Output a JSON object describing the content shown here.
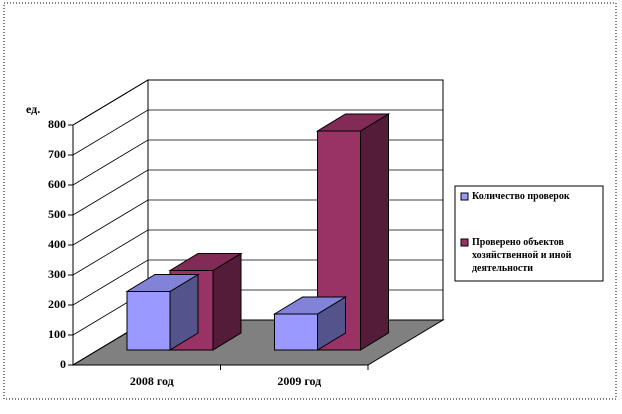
{
  "chart_data": {
    "type": "bar3d",
    "y_label": "ед.",
    "categories": [
      "2008 год",
      "2009 год"
    ],
    "series": [
      {
        "name": "Количество проверок",
        "color": "#9999ff",
        "values": [
          195,
          120
        ]
      },
      {
        "name": "Проверено объектов хозяйственной и иной деятельности",
        "color": "#993366",
        "values": [
          265,
          730
        ]
      }
    ],
    "ylim": [
      0,
      800
    ],
    "yticks": [
      0,
      100,
      200,
      300,
      400,
      500,
      600,
      700,
      800
    ],
    "grid": true,
    "legend": "right"
  }
}
